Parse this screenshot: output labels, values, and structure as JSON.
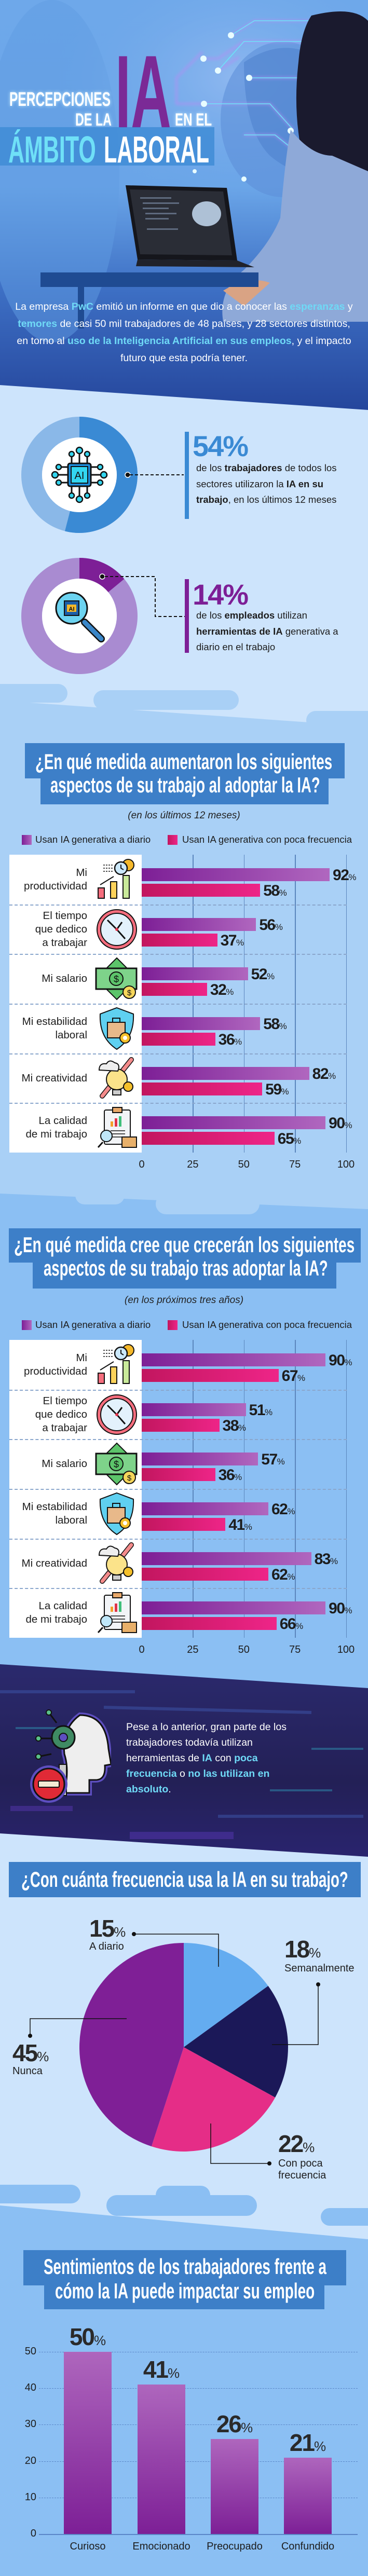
{
  "hero": {
    "title": {
      "line1": "PERCEPCIONES",
      "de_la": "DE LA",
      "ia": "IA",
      "en_el": "EN EL",
      "ambito": "ÁMBITO",
      "laboral": "LABORAL"
    },
    "intro": [
      {
        "t": "La empresa "
      },
      {
        "t": "PwC",
        "hl": true
      },
      {
        "t": " emitió un informe en que dio a conocer las "
      },
      {
        "t": "esperanzas",
        "hl": true
      },
      {
        "t": " y "
      },
      {
        "t": "temores",
        "hl": true
      },
      {
        "t": " de casi 50 mil trabajadores de 48 países, y 28 sectores distintos, en torno al "
      },
      {
        "t": "uso de la Inteligencia Artificial en sus empleos",
        "hl": true
      },
      {
        "t": ", y el impacto futuro que esta podría tener."
      }
    ]
  },
  "stats": [
    {
      "value": "54%",
      "fraction": 0.54,
      "color": "#3a8ad4",
      "track": "#8ab8e8",
      "icon": "ai-chip-icon",
      "text": [
        {
          "t": "de los "
        },
        {
          "t": "trabajadores",
          "b": true
        },
        {
          "t": " de todos los sectores utilizaron la "
        },
        {
          "t": "IA en su trabajo",
          "b": true
        },
        {
          "t": ", en los últimos 12 meses"
        }
      ]
    },
    {
      "value": "14%",
      "fraction": 0.14,
      "color": "#7d1f96",
      "track": "#a98bd1",
      "icon": "ai-magnifier-icon",
      "text": [
        {
          "t": "de los "
        },
        {
          "t": "empleados",
          "b": true
        },
        {
          "t": " utilizan "
        },
        {
          "t": "herramientas de IA",
          "b": true
        },
        {
          "t": " generativa a diario en el trabajo"
        }
      ]
    }
  ],
  "callout": {
    "icon": "ai-head-blocked-icon",
    "text": [
      {
        "t": "Pese a lo anterior, gran parte de los trabajadores todavía utilizan herramientas de "
      },
      {
        "t": "IA",
        "hl": true
      },
      {
        "t": " con "
      },
      {
        "t": "poca frecuencia",
        "hl": true
      },
      {
        "t": " o "
      },
      {
        "t": "no las utilizan en absoluto",
        "hl": true
      },
      {
        "t": "."
      }
    ]
  },
  "colors": {
    "daily": "#7d1f96",
    "daily_light": "#b067bf",
    "low": "#c2165f",
    "low_light": "#ee2588",
    "title_box": "#3d7fc8",
    "highlight": "#6fd9f6"
  },
  "chart_data": [
    {
      "type": "bar",
      "orientation": "horizontal",
      "title_lines": [
        "¿En qué medida aumentaron los siguientes",
        "aspectos de su trabajo al adoptar la IA?"
      ],
      "subtitle": "(en los últimos 12 meses)",
      "categories": [
        "Mi\nproductividad",
        "El tiempo\nque dedico\na trabajar",
        "Mi salario",
        "Mi estabilidad\nlaboral",
        "Mi creatividad",
        "La calidad\nde mi trabajo"
      ],
      "icons": [
        "productivity-chart-icon",
        "clock-icon",
        "money-bill-icon",
        "job-security-shield-icon",
        "creativity-lightbulb-icon",
        "quality-clipboard-icon"
      ],
      "series": [
        {
          "name": "Usan IA generativa a diario",
          "values": [
            92,
            56,
            52,
            58,
            82,
            90
          ]
        },
        {
          "name": "Usan IA generativa con poca frecuencia",
          "values": [
            58,
            37,
            32,
            36,
            59,
            65
          ]
        }
      ],
      "unit": "%",
      "xlim": [
        0,
        100
      ],
      "xticks": [
        0,
        25,
        50,
        75,
        100
      ],
      "grid": true,
      "legend": "top"
    },
    {
      "type": "bar",
      "orientation": "horizontal",
      "title_lines": [
        "¿En qué medida cree que crecerán los siguientes",
        "aspectos de su trabajo tras adoptar la IA?"
      ],
      "subtitle": "(en los próximos tres años)",
      "categories": [
        "Mi\nproductividad",
        "El tiempo\nque dedico\na trabajar",
        "Mi salario",
        "Mi estabilidad\nlaboral",
        "Mi creatividad",
        "La calidad\nde mi trabajo"
      ],
      "icons": [
        "productivity-chart-icon",
        "clock-icon",
        "money-bill-icon",
        "job-security-shield-icon",
        "creativity-lightbulb-icon",
        "quality-clipboard-icon"
      ],
      "series": [
        {
          "name": "Usan IA generativa a diario",
          "values": [
            90,
            51,
            57,
            62,
            83,
            90
          ]
        },
        {
          "name": "Usan IA generativa con poca frecuencia",
          "values": [
            67,
            38,
            36,
            41,
            62,
            66
          ]
        }
      ],
      "unit": "%",
      "xlim": [
        0,
        100
      ],
      "xticks": [
        0,
        25,
        50,
        75,
        100
      ],
      "grid": true,
      "legend": "top"
    },
    {
      "type": "pie",
      "title_lines": [
        "¿Con cuánta frecuencia usa la IA en su trabajo?"
      ],
      "unit": "%",
      "slices": [
        {
          "label": "A diario",
          "value": 15,
          "color": "#64acf0"
        },
        {
          "label": "Semanalmente",
          "value": 18,
          "color": "#1b1858"
        },
        {
          "label": "Con poca frecuencia",
          "value": 22,
          "color": "#e52d87"
        },
        {
          "label": "Nunca",
          "value": 45,
          "color": "#7f1f96"
        }
      ]
    },
    {
      "type": "bar",
      "orientation": "vertical",
      "title_lines": [
        "Sentimientos de los trabajadores frente a",
        "cómo la IA puede impactar su empleo"
      ],
      "categories": [
        "Curioso",
        "Emocionado",
        "Preocupado",
        "Confundido"
      ],
      "values": [
        50,
        41,
        26,
        21
      ],
      "unit": "%",
      "ylim": [
        0,
        50
      ],
      "yticks": [
        0,
        10,
        20,
        30,
        40,
        50
      ],
      "grid": true
    }
  ]
}
